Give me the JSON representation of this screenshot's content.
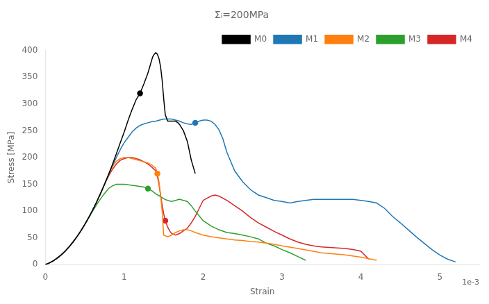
{
  "chart_data": {
    "type": "line",
    "title": "Σᵢ=200MPa",
    "xlabel": "Strain",
    "ylabel": "Stress [MPa]",
    "annotations": [
      "1e-3"
    ],
    "xlim": [
      0,
      5.5
    ],
    "ylim": [
      0,
      400
    ],
    "xticks": [
      0,
      1,
      2,
      3,
      4,
      5
    ],
    "yticks": [
      0,
      50,
      100,
      150,
      200,
      250,
      300,
      350,
      400
    ],
    "grid": false,
    "legend": "upper right",
    "series": [
      {
        "name": "M0",
        "color": "#000000",
        "marker": "o",
        "x": [
          0,
          0.05,
          0.1,
          0.15,
          0.2,
          0.25,
          0.3,
          0.35,
          0.4,
          0.45,
          0.5,
          0.55,
          0.6,
          0.65,
          0.7,
          0.75,
          0.8,
          0.85,
          0.9,
          0.95,
          1.0,
          1.05,
          1.1,
          1.15,
          1.2,
          1.25,
          1.3,
          1.32,
          1.34,
          1.36,
          1.38,
          1.4,
          1.42,
          1.44,
          1.46,
          1.48,
          1.5,
          1.52,
          1.55,
          1.58,
          1.6,
          1.62,
          1.65,
          1.68,
          1.7,
          1.75,
          1.8,
          1.85,
          1.9
        ],
        "values": [
          0,
          3,
          7,
          12,
          18,
          25,
          33,
          42,
          52,
          63,
          75,
          88,
          102,
          117,
          133,
          150,
          168,
          187,
          207,
          228,
          248,
          270,
          290,
          308,
          320,
          338,
          358,
          368,
          378,
          388,
          393,
          396,
          393,
          385,
          370,
          345,
          310,
          280,
          268,
          268,
          268,
          268,
          268,
          265,
          262,
          250,
          230,
          195,
          170
        ]
      },
      {
        "name": "M1",
        "color": "#1f77b4",
        "marker": "o",
        "x": [
          0,
          0.05,
          0.1,
          0.15,
          0.2,
          0.25,
          0.3,
          0.35,
          0.4,
          0.45,
          0.5,
          0.55,
          0.6,
          0.65,
          0.7,
          0.75,
          0.8,
          0.85,
          0.9,
          0.95,
          1.0,
          1.05,
          1.1,
          1.15,
          1.2,
          1.25,
          1.3,
          1.35,
          1.4,
          1.45,
          1.5,
          1.55,
          1.6,
          1.65,
          1.7,
          1.75,
          1.8,
          1.85,
          1.9,
          1.95,
          2.0,
          2.05,
          2.1,
          2.15,
          2.2,
          2.25,
          2.3,
          2.4,
          2.5,
          2.6,
          2.7,
          2.8,
          2.9,
          3.0,
          3.1,
          3.2,
          3.3,
          3.4,
          3.5,
          3.6,
          3.7,
          3.8,
          3.9,
          4.0,
          4.1,
          4.2,
          4.3,
          4.4,
          4.5,
          4.6,
          4.7,
          4.8,
          4.9,
          5.0,
          5.1,
          5.2
        ],
        "values": [
          0,
          3,
          7,
          12,
          18,
          25,
          33,
          42,
          52,
          63,
          75,
          88,
          102,
          117,
          133,
          150,
          168,
          185,
          200,
          215,
          228,
          238,
          248,
          255,
          260,
          263,
          265,
          267,
          268,
          270,
          272,
          272,
          272,
          270,
          268,
          265,
          263,
          262,
          265,
          268,
          270,
          270,
          268,
          262,
          252,
          235,
          210,
          175,
          155,
          140,
          130,
          125,
          120,
          118,
          115,
          118,
          120,
          122,
          122,
          122,
          122,
          122,
          122,
          120,
          118,
          115,
          105,
          90,
          78,
          65,
          52,
          40,
          28,
          18,
          10,
          5
        ]
      },
      {
        "name": "M2",
        "color": "#ff7f0e",
        "marker": "o",
        "x": [
          0,
          0.05,
          0.1,
          0.15,
          0.2,
          0.25,
          0.3,
          0.35,
          0.4,
          0.45,
          0.5,
          0.55,
          0.6,
          0.65,
          0.7,
          0.75,
          0.8,
          0.85,
          0.9,
          0.95,
          1.0,
          1.05,
          1.1,
          1.15,
          1.2,
          1.25,
          1.3,
          1.35,
          1.4,
          1.42,
          1.44,
          1.46,
          1.48,
          1.5,
          1.55,
          1.6,
          1.65,
          1.7,
          1.75,
          1.8,
          1.85,
          1.9,
          2.0,
          2.1,
          2.2,
          2.3,
          2.4,
          2.5,
          2.6,
          2.7,
          2.8,
          2.9,
          3.0,
          3.2,
          3.5,
          3.8,
          4.0,
          4.2
        ],
        "values": [
          0,
          3,
          7,
          12,
          18,
          25,
          33,
          42,
          52,
          63,
          75,
          88,
          102,
          117,
          133,
          150,
          168,
          183,
          193,
          198,
          200,
          200,
          198,
          196,
          194,
          192,
          190,
          186,
          180,
          170,
          155,
          130,
          100,
          55,
          52,
          55,
          60,
          63,
          65,
          65,
          63,
          60,
          55,
          52,
          50,
          48,
          46,
          45,
          43,
          42,
          40,
          38,
          35,
          30,
          22,
          18,
          14,
          8
        ]
      },
      {
        "name": "M3",
        "color": "#2ca02c",
        "marker": "o",
        "x": [
          0,
          0.05,
          0.1,
          0.15,
          0.2,
          0.25,
          0.3,
          0.35,
          0.4,
          0.45,
          0.5,
          0.55,
          0.6,
          0.65,
          0.7,
          0.75,
          0.8,
          0.85,
          0.9,
          0.95,
          1.0,
          1.05,
          1.1,
          1.15,
          1.2,
          1.25,
          1.3,
          1.35,
          1.4,
          1.45,
          1.5,
          1.55,
          1.6,
          1.65,
          1.7,
          1.75,
          1.8,
          1.85,
          1.9,
          2.0,
          2.1,
          2.2,
          2.3,
          2.4,
          2.5,
          2.6,
          2.7,
          2.8,
          2.9,
          3.0,
          3.1,
          3.2,
          3.3
        ],
        "values": [
          0,
          3,
          7,
          12,
          18,
          25,
          33,
          42,
          52,
          63,
          75,
          88,
          100,
          112,
          123,
          133,
          142,
          147,
          150,
          150,
          150,
          149,
          148,
          147,
          146,
          145,
          142,
          138,
          132,
          128,
          123,
          120,
          118,
          120,
          122,
          120,
          118,
          110,
          100,
          82,
          72,
          65,
          60,
          58,
          55,
          52,
          48,
          40,
          35,
          28,
          22,
          15,
          8
        ]
      },
      {
        "name": "M4",
        "color": "#d62728",
        "marker": "o",
        "x": [
          0,
          0.05,
          0.1,
          0.15,
          0.2,
          0.25,
          0.3,
          0.35,
          0.4,
          0.45,
          0.5,
          0.55,
          0.6,
          0.65,
          0.7,
          0.75,
          0.8,
          0.85,
          0.9,
          0.95,
          1.0,
          1.05,
          1.1,
          1.15,
          1.2,
          1.25,
          1.3,
          1.35,
          1.4,
          1.42,
          1.44,
          1.46,
          1.48,
          1.5,
          1.52,
          1.55,
          1.58,
          1.6,
          1.65,
          1.7,
          1.75,
          1.8,
          1.85,
          1.9,
          1.95,
          2.0,
          2.1,
          2.15,
          2.2,
          2.3,
          2.4,
          2.5,
          2.6,
          2.7,
          2.8,
          2.9,
          3.0,
          3.1,
          3.2,
          3.3,
          3.4,
          3.5,
          3.6,
          3.7,
          3.8,
          3.9,
          4.0,
          4.1
        ],
        "values": [
          0,
          3,
          7,
          12,
          18,
          25,
          33,
          42,
          52,
          63,
          75,
          88,
          102,
          117,
          133,
          150,
          165,
          178,
          188,
          195,
          198,
          200,
          200,
          198,
          196,
          192,
          188,
          182,
          175,
          165,
          150,
          130,
          112,
          95,
          82,
          70,
          62,
          58,
          55,
          58,
          63,
          68,
          78,
          90,
          105,
          120,
          128,
          130,
          128,
          120,
          110,
          100,
          88,
          78,
          70,
          62,
          55,
          48,
          42,
          38,
          35,
          33,
          32,
          31,
          30,
          28,
          25,
          10
        ]
      }
    ]
  }
}
